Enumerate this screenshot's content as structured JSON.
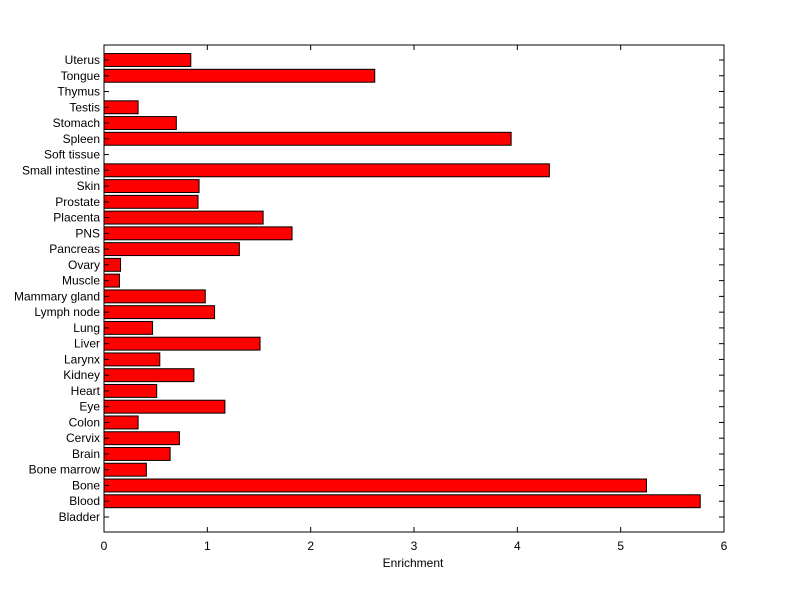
{
  "chart_data": {
    "type": "bar",
    "orientation": "horizontal",
    "title": "",
    "xlabel": "Enrichment",
    "ylabel": "",
    "xlim": [
      0,
      6
    ],
    "xticks": [
      "0",
      "1",
      "2",
      "3",
      "4",
      "5",
      "6"
    ],
    "grid": false,
    "legend": "none",
    "categories": [
      "Bladder",
      "Blood",
      "Bone",
      "Bone marrow",
      "Brain",
      "Cervix",
      "Colon",
      "Eye",
      "Heart",
      "Kidney",
      "Larynx",
      "Liver",
      "Lung",
      "Lymph node",
      "Mammary gland",
      "Muscle",
      "Ovary",
      "Pancreas",
      "PNS",
      "Placenta",
      "Prostate",
      "Skin",
      "Small intestine",
      "Soft tissue",
      "Spleen",
      "Stomach",
      "Testis",
      "Thymus",
      "Tongue",
      "Uterus"
    ],
    "values": [
      0,
      5.77,
      5.25,
      0.41,
      0.64,
      0.73,
      0.33,
      1.17,
      0.51,
      0.87,
      0.54,
      1.51,
      0.47,
      1.07,
      0.98,
      0.15,
      0.16,
      1.31,
      1.82,
      1.54,
      0.91,
      0.92,
      4.31,
      0,
      3.94,
      0.7,
      0.33,
      0,
      2.62,
      0.84
    ]
  },
  "colors": {
    "bar_fill": "#ff0000",
    "bar_stroke": "#000000",
    "axis": "#000000",
    "background": "#ffffff"
  }
}
